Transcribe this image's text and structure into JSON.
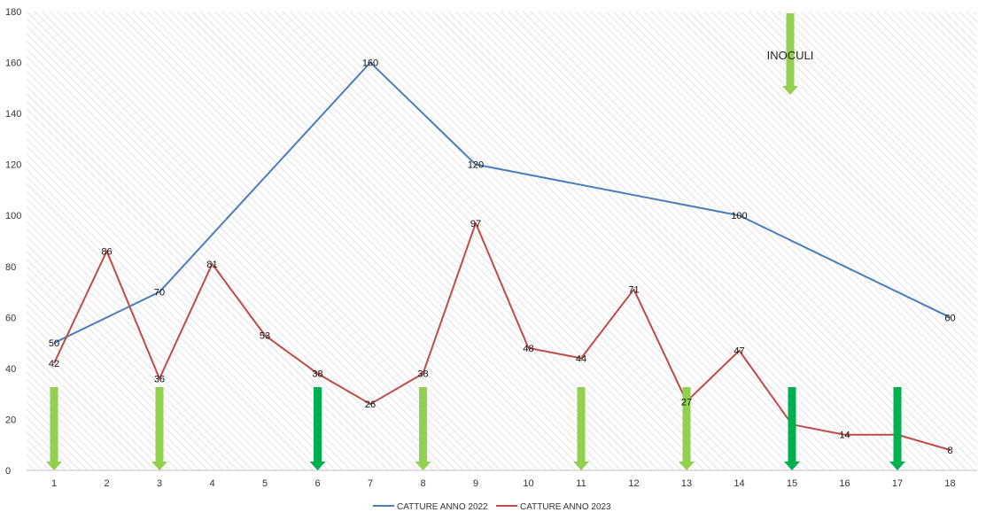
{
  "chart_data": {
    "type": "line",
    "title": "",
    "xlabel": "",
    "ylabel": "",
    "categories": [
      "1",
      "2",
      "3",
      "4",
      "5",
      "6",
      "7",
      "8",
      "9",
      "10",
      "11",
      "12",
      "13",
      "14",
      "15",
      "16",
      "17",
      "18"
    ],
    "ylim": [
      0,
      180
    ],
    "yticks": [
      "0",
      "20",
      "40",
      "60",
      "80",
      "100",
      "120",
      "140",
      "160",
      "180"
    ],
    "grid": "diagonal hatch background",
    "legend_position": "bottom",
    "series": [
      {
        "name": "CATTURE ANNO 2022",
        "color": "#4a7ebb",
        "points": [
          {
            "x": 1,
            "y": 50,
            "label": "50"
          },
          {
            "x": 3,
            "y": 70,
            "label": "70"
          },
          {
            "x": 7,
            "y": 160,
            "label": "160"
          },
          {
            "x": 9,
            "y": 120,
            "label": "120"
          },
          {
            "x": 14,
            "y": 100,
            "label": "100"
          },
          {
            "x": 18,
            "y": 60,
            "label": "60"
          }
        ]
      },
      {
        "name": "CATTURE ANNO 2023",
        "color": "#be4b48",
        "points": [
          {
            "x": 1,
            "y": 42,
            "label": "42"
          },
          {
            "x": 2,
            "y": 86,
            "label": "86"
          },
          {
            "x": 3,
            "y": 36,
            "label": "36"
          },
          {
            "x": 4,
            "y": 81,
            "label": "81"
          },
          {
            "x": 5,
            "y": 53,
            "label": "53"
          },
          {
            "x": 6,
            "y": 38,
            "label": "38"
          },
          {
            "x": 7,
            "y": 26,
            "label": "26"
          },
          {
            "x": 8,
            "y": 38,
            "label": "38"
          },
          {
            "x": 9,
            "y": 97,
            "label": "97"
          },
          {
            "x": 10,
            "y": 48,
            "label": "48"
          },
          {
            "x": 11,
            "y": 44,
            "label": "44"
          },
          {
            "x": 12,
            "y": 71,
            "label": "71"
          },
          {
            "x": 13,
            "y": 27,
            "label": "27"
          },
          {
            "x": 14,
            "y": 47,
            "label": "47"
          },
          {
            "x": 15,
            "y": 18,
            "label": ""
          },
          {
            "x": 16,
            "y": 14,
            "label": "14"
          },
          {
            "x": 17,
            "y": 14,
            "label": ""
          },
          {
            "x": 18,
            "y": 8,
            "label": "8"
          }
        ]
      }
    ],
    "inoculation_arrows": [
      {
        "x": 1,
        "color": "#92d050"
      },
      {
        "x": 3,
        "color": "#92d050"
      },
      {
        "x": 6,
        "color": "#00b050"
      },
      {
        "x": 8,
        "color": "#92d050"
      },
      {
        "x": 11,
        "color": "#92d050"
      },
      {
        "x": 13,
        "color": "#92d050"
      },
      {
        "x": 15,
        "color": "#00b050"
      },
      {
        "x": 17,
        "color": "#00b050"
      }
    ],
    "annotation": {
      "text": "INOCULI",
      "arrow_color": "#92d050"
    }
  }
}
